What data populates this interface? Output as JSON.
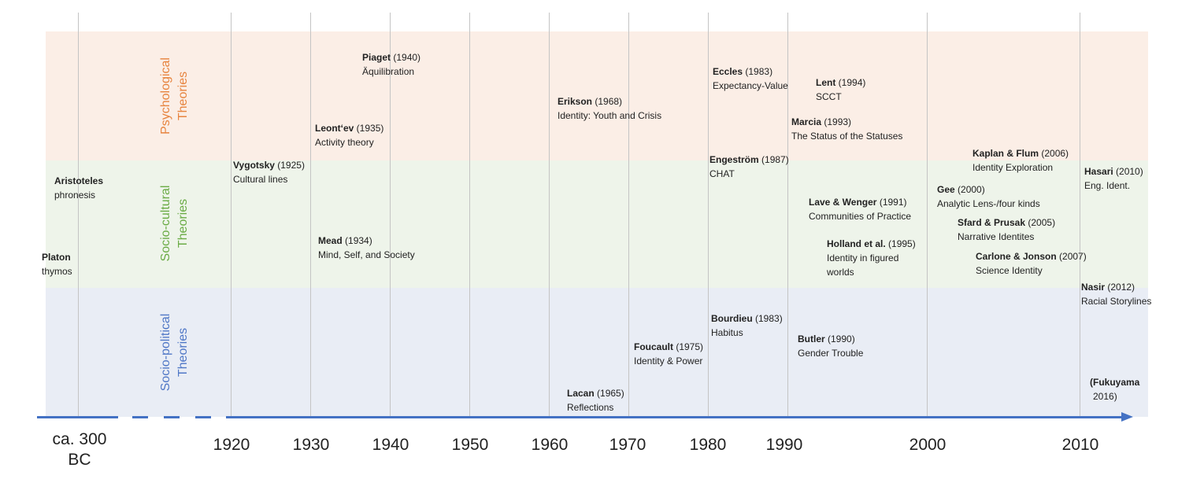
{
  "bands": {
    "psychological": {
      "label_line1": "Psychological",
      "label_line2": "Theories",
      "color": "#e7843f",
      "fill": "#fbeee6"
    },
    "sociocultural": {
      "label_line1": "Socio-cultural",
      "label_line2": "Theories",
      "color": "#6aab45",
      "fill": "#eef4ea"
    },
    "sociopolitical": {
      "label_line1": "Socio-political",
      "label_line2": "Theories",
      "color": "#4f77c6",
      "fill": "#e9edf5"
    }
  },
  "axis": {
    "color": "#4472c4",
    "ancient_label_line1": "ca. 300",
    "ancient_label_line2": "BC",
    "ticks": [
      "1920",
      "1930",
      "1940",
      "1950",
      "1960",
      "1970",
      "1980",
      "1990",
      "2000",
      "2010"
    ]
  },
  "entries": {
    "aristoteles": {
      "name": "Aristoteles",
      "year": "",
      "desc": "phronesis"
    },
    "platon": {
      "name": "Platon",
      "year": "",
      "desc": "thymos"
    },
    "vygotsky": {
      "name": "Vygotsky",
      "year": " (1925)",
      "desc": "Cultural lines"
    },
    "leontev": {
      "name": "Leont‘ev",
      "year": " (1935)",
      "desc": "Activity theory"
    },
    "piaget": {
      "name": "Piaget",
      "year": " (1940)",
      "desc": "Äquilibration"
    },
    "mead": {
      "name": "Mead",
      "year": " (1934)",
      "desc": "Mind, Self, and Society"
    },
    "erikson": {
      "name": "Erikson",
      "year": " (1968)",
      "desc": "Identity: Youth and Crisis"
    },
    "lacan": {
      "name": "Lacan",
      "year": " (1965)",
      "desc": "Reflections"
    },
    "foucault": {
      "name": "Foucault",
      "year": " (1975)",
      "desc": "Identity & Power"
    },
    "eccles": {
      "name": "Eccles",
      "year": " (1983)",
      "desc": "Expectancy-Value"
    },
    "engestrom": {
      "name": "Engeström",
      "year": " (1987)",
      "desc": "CHAT"
    },
    "bourdieu": {
      "name": "Bourdieu",
      "year": " (1983)",
      "desc": "Habitus"
    },
    "lent": {
      "name": "Lent",
      "year": " (1994)",
      "desc": "SCCT"
    },
    "marcia": {
      "name": "Marcia",
      "year": " (1993)",
      "desc": "The Status of the Statuses"
    },
    "lave_wenger": {
      "name": "Lave & Wenger",
      "year": " (1991)",
      "desc": "Communities of Practice"
    },
    "holland": {
      "name": "Holland et al.",
      "year": " (1995)",
      "desc_line1": "Identity in figured",
      "desc_line2": "worlds"
    },
    "butler": {
      "name": "Butler",
      "year": " (1990)",
      "desc": "Gender Trouble"
    },
    "kaplan_flum": {
      "name": "Kaplan & Flum",
      "year": " (2006)",
      "desc": "Identity Exploration"
    },
    "gee": {
      "name": "Gee",
      "year": " (2000)",
      "desc": "Analytic Lens-/four kinds"
    },
    "sfard_prusak": {
      "name": "Sfard & Prusak",
      "year": " (2005)",
      "desc": "Narrative Identites"
    },
    "carlone_jonson": {
      "name": "Carlone & Jonson",
      "year": " (2007)",
      "desc": "Science Identity"
    },
    "hasari": {
      "name": "Hasari",
      "year": " (2010)",
      "desc": "Eng. Ident."
    },
    "nasir": {
      "name": "Nasir",
      "year": " (2012)",
      "desc": "Racial Storylines"
    },
    "fukuyama": {
      "name": "(Fukuyama",
      "year": "",
      "desc": "2016)"
    }
  }
}
